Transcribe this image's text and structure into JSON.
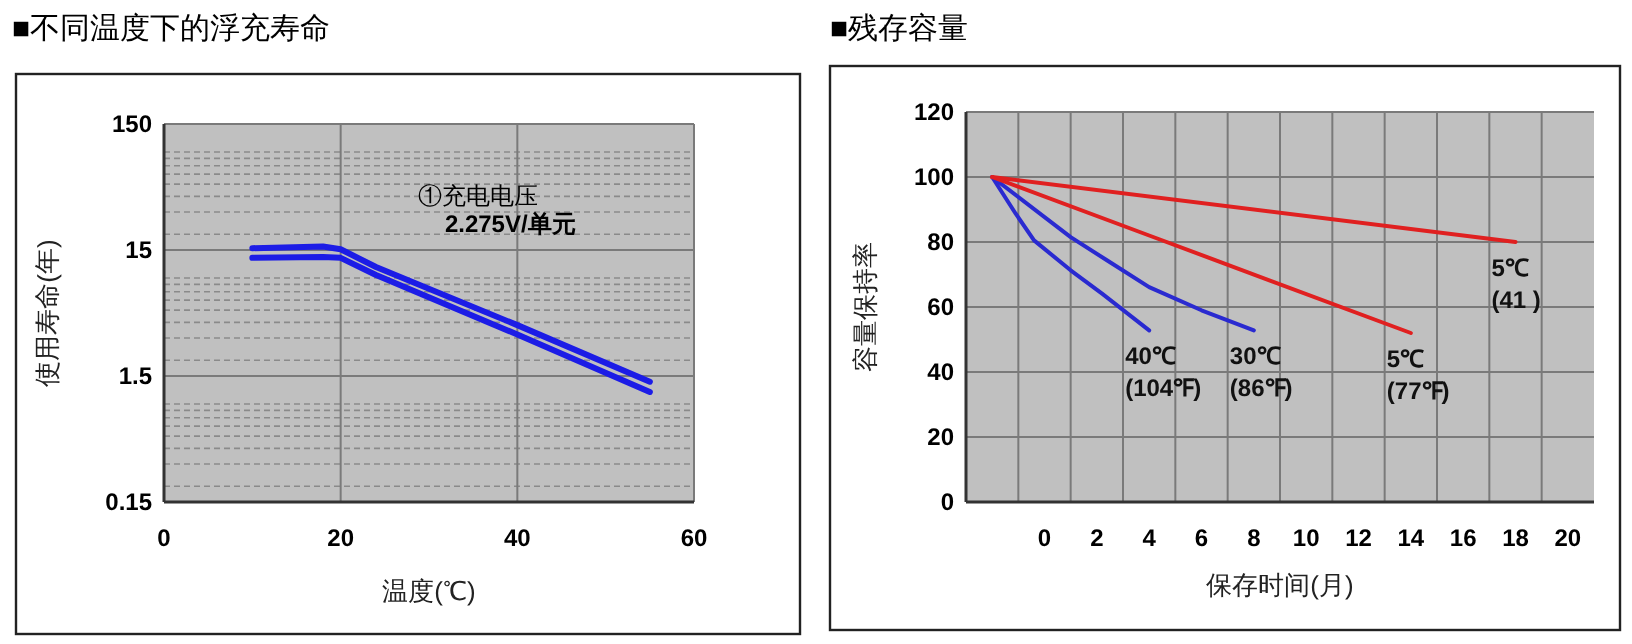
{
  "chart_data": [
    {
      "type": "line",
      "title": "■不同温度下的浮充寿命",
      "xlabel": "温度(℃)",
      "ylabel": "使用寿命(年)",
      "xlim": [
        0,
        60
      ],
      "ylim": [
        0.15,
        150
      ],
      "xticks": [
        0,
        20,
        40,
        60
      ],
      "yticks": [
        0.15,
        1.5,
        15,
        150
      ],
      "log": "y",
      "grid": true,
      "line_style": "solid",
      "annotations": [
        "①充电电压",
        "2.275V/单元"
      ],
      "series": [
        {
          "color": "#1c1ce6",
          "x": [
            10,
            18,
            20,
            24,
            40,
            55
          ],
          "values": [
            15.5,
            16,
            15.2,
            11,
            3.8,
            1.35
          ]
        },
        {
          "color": "#1c1ce6",
          "x": [
            10,
            18,
            20,
            24,
            40,
            55
          ],
          "values": [
            13,
            13.2,
            13,
            9.5,
            3.2,
            1.12
          ]
        }
      ]
    },
    {
      "type": "line",
      "title": "■残存容量",
      "xlabel": "保存时间(月)",
      "ylabel": "容量保持率",
      "xlim": [
        -3,
        21
      ],
      "ylim": [
        0,
        120
      ],
      "yticks": [
        0,
        20,
        40,
        60,
        80,
        100,
        120
      ],
      "grid": true,
      "line_style": "solid",
      "xticks": [
        {
          "value": -1,
          "label": null
        },
        {
          "value": 0,
          "label": "0"
        },
        {
          "value": 1,
          "label": null
        },
        {
          "value": 2,
          "label": "2"
        },
        {
          "value": 3,
          "label": null
        },
        {
          "value": 4,
          "label": "4"
        },
        {
          "value": 5,
          "label": null
        },
        {
          "value": 6,
          "label": "6"
        },
        {
          "value": 7,
          "label": null
        },
        {
          "value": 8,
          "label": "8"
        },
        {
          "value": 9,
          "label": null
        },
        {
          "value": 10,
          "label": "10"
        },
        {
          "value": 11,
          "label": null
        },
        {
          "value": 12,
          "label": "12"
        },
        {
          "value": 13,
          "label": null
        },
        {
          "value": 14,
          "label": "14"
        },
        {
          "value": 15,
          "label": null
        },
        {
          "value": 16,
          "label": "16"
        },
        {
          "value": 17,
          "label": null
        },
        {
          "value": 18,
          "label": "18"
        },
        {
          "value": 19,
          "label": null
        },
        {
          "value": 20,
          "label": "20"
        }
      ],
      "series": [
        {
          "name": "40℃ (104℉)",
          "color": "#2a2ad0",
          "x": [
            -2,
            -1.1,
            -0.4,
            1,
            2.2,
            4
          ],
          "values": [
            100,
            88.7,
            80.5,
            71.3,
            64.1,
            52.8
          ]
        },
        {
          "name": "30℃ (86℉)",
          "color": "#2a2ad0",
          "x": [
            -2,
            1,
            2.4,
            4,
            6,
            8
          ],
          "values": [
            100,
            81.5,
            74.3,
            66.1,
            59,
            52.8
          ]
        },
        {
          "name": "5℃ (77℉)",
          "color": "#e02020",
          "x": [
            -2,
            4,
            14
          ],
          "values": [
            100,
            82,
            52
          ]
        },
        {
          "name": "5℃ (41 )",
          "color": "#e02020",
          "x": [
            -2,
            18
          ],
          "values": [
            100,
            80
          ]
        }
      ]
    }
  ]
}
